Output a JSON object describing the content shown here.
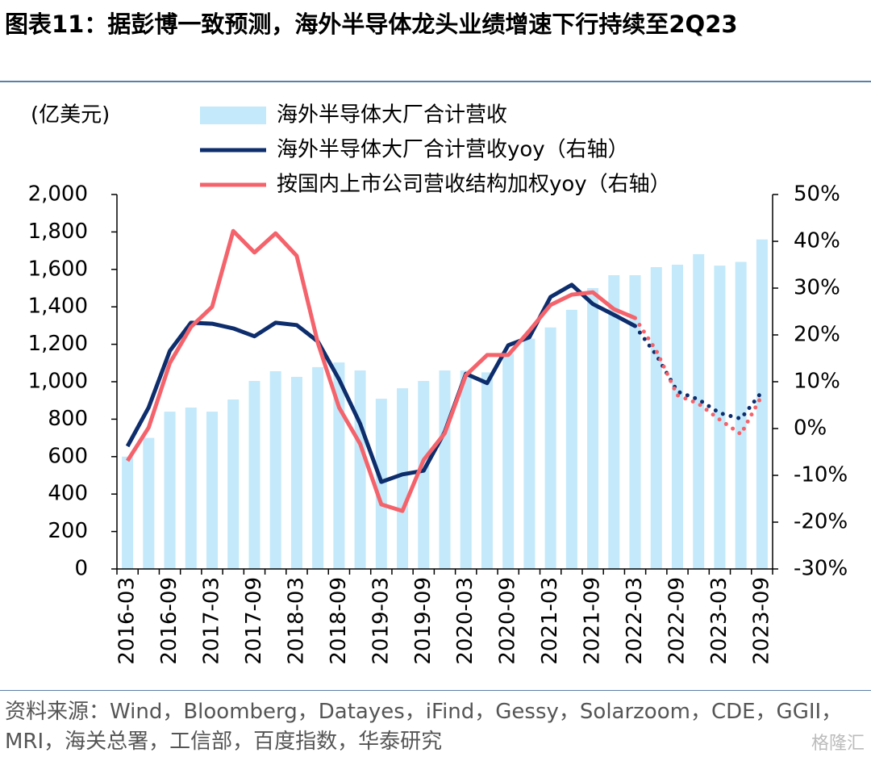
{
  "chart_data": {
    "type": "bar_line",
    "title": "图表11：据彭博一致预测，海外半导体龙头业绩增速下行持续至2Q23",
    "y_axis_label": "(亿美元)",
    "source": "资料来源：Wind，Bloomberg，Datayes，iFind，Gessy，Solarzoom，CDE，GGII，MRI，海关总署，工信部，百度指数，华泰研究",
    "watermark": "格隆汇",
    "categories": [
      "2016-03",
      null,
      "2016-09",
      null,
      "2017-03",
      null,
      "2017-09",
      null,
      "2018-03",
      null,
      "2018-09",
      null,
      "2019-03",
      null,
      "2019-09",
      null,
      "2020-03",
      null,
      "2020-09",
      null,
      "2021-03",
      null,
      "2021-09",
      null,
      "2022-03",
      null,
      "2022-09",
      null,
      "2023-03",
      null,
      "2023-09"
    ],
    "series": [
      {
        "name": "海外半导体大厂合计营收",
        "type": "bar",
        "color": "#c3e9fa",
        "values": [
          600,
          700,
          840,
          862,
          840,
          905,
          1004,
          1056,
          1026,
          1078,
          1103,
          1060,
          909,
          965,
          1004,
          1060,
          1060,
          1050,
          1150,
          1230,
          1290,
          1384,
          1500,
          1569,
          1569,
          1612,
          1625,
          1681,
          1620,
          1640,
          1760
        ]
      },
      {
        "name": "海外半导体大厂合计营收yoy（右轴）",
        "type": "line",
        "axis": "y2",
        "color": "#0d2d6c",
        "dotted_from": 24,
        "values": [
          -3.8,
          4.5,
          16.6,
          22.6,
          22.4,
          21.4,
          19.7,
          22.6,
          22.1,
          18.6,
          10.5,
          1.0,
          -11.4,
          -9.8,
          -9.0,
          -0.7,
          11.7,
          9.7,
          17.8,
          19.5,
          28.1,
          30.7,
          26.6,
          24.3,
          21.9,
          15.7,
          7.9,
          6.2,
          3.3,
          2.1,
          7.9
        ]
      },
      {
        "name": "按国内上市公司营收结构加权yoy（右轴）",
        "type": "line",
        "axis": "y2",
        "color": "#f4636b",
        "dotted_from": 24,
        "values": [
          -6.9,
          0.2,
          14.0,
          21.7,
          26.0,
          42.2,
          37.6,
          41.7,
          36.9,
          18.3,
          4.5,
          -3.3,
          -16.2,
          -17.6,
          -6.7,
          -1.0,
          11.4,
          15.7,
          15.7,
          20.9,
          26.4,
          28.6,
          29.1,
          25.5,
          23.6,
          16.6,
          7.1,
          5.3,
          1.9,
          -1.2,
          7.1
        ]
      }
    ],
    "ylim": [
      0,
      2000
    ],
    "yticks": [
      0,
      200,
      400,
      600,
      800,
      {
        "value": 1000,
        "label": "1,000"
      },
      {
        "value": 1200,
        "label": "1,200"
      },
      {
        "value": 1400,
        "label": "1,400"
      },
      {
        "value": 1600,
        "label": "1,600"
      },
      {
        "value": 1800,
        "label": "1,800"
      },
      {
        "value": 2000,
        "label": "2,000"
      }
    ],
    "y2lim": [
      -30,
      50
    ],
    "y2ticks": [
      {
        "value": -30,
        "label": "-30%"
      },
      {
        "value": -20,
        "label": "-20%"
      },
      {
        "value": -10,
        "label": "-10%"
      },
      {
        "value": 0,
        "label": "0%"
      },
      {
        "value": 10,
        "label": "10%"
      },
      {
        "value": 20,
        "label": "20%"
      },
      {
        "value": 30,
        "label": "30%"
      },
      {
        "value": 40,
        "label": "40%"
      },
      {
        "value": 50,
        "label": "50%"
      }
    ]
  }
}
